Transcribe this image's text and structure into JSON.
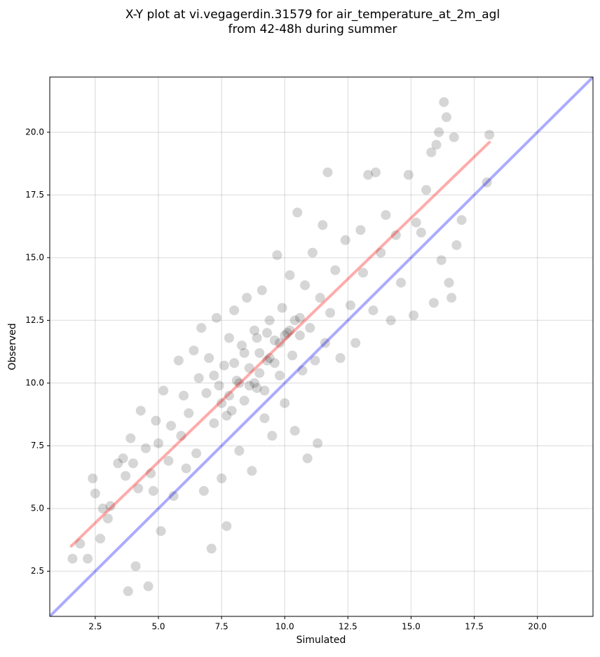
{
  "chart_data": {
    "type": "scatter",
    "title": [
      "X-Y plot at vi.vegagerdin.31579 for air_temperature_at_2m_agl",
      "from 42-48h during summer"
    ],
    "x_label": "Simulated",
    "y_label": "Observed",
    "xlim": [
      0.7,
      22.2
    ],
    "ylim": [
      0.7,
      22.2
    ],
    "xticks": [
      2.5,
      {
        "value": 5,
        "label": "5.0"
      },
      7.5,
      {
        "value": 10,
        "label": "10.0"
      },
      12.5,
      {
        "value": 15,
        "label": "15.0"
      },
      17.5,
      {
        "value": 20,
        "label": "20.0"
      }
    ],
    "yticks": [
      2.5,
      {
        "value": 5,
        "label": "5.0"
      },
      7.5,
      {
        "value": 10,
        "label": "10.0"
      },
      12.5,
      {
        "value": 15,
        "label": "15.0"
      },
      17.5,
      {
        "value": 20,
        "label": "20.0"
      }
    ],
    "grid": true,
    "color": "#000000",
    "x": [
      1.6,
      1.9,
      2.2,
      2.4,
      2.5,
      2.7,
      2.8,
      3.0,
      3.1,
      3.4,
      3.6,
      3.7,
      3.8,
      3.9,
      4.0,
      4.1,
      4.2,
      4.3,
      4.5,
      4.6,
      4.7,
      4.8,
      4.9,
      5.0,
      5.1,
      5.2,
      5.4,
      5.5,
      5.6,
      5.8,
      5.9,
      6.0,
      6.1,
      6.2,
      6.4,
      6.5,
      6.6,
      6.7,
      6.8,
      6.9,
      7.0,
      7.1,
      7.2,
      7.3,
      7.4,
      7.5,
      7.6,
      7.7,
      7.8,
      7.9,
      8.0,
      8.1,
      8.2,
      8.3,
      8.4,
      8.5,
      8.6,
      8.7,
      8.8,
      8.9,
      9.0,
      9.1,
      9.2,
      9.3,
      9.4,
      9.5,
      9.6,
      9.7,
      9.8,
      9.9,
      10.0,
      10.1,
      10.2,
      10.3,
      10.4,
      10.5,
      10.6,
      10.7,
      10.8,
      10.9,
      11.0,
      11.1,
      11.2,
      11.3,
      11.4,
      11.5,
      11.6,
      11.7,
      11.8,
      12.0,
      12.2,
      12.4,
      12.6,
      12.8,
      13.0,
      13.1,
      13.3,
      13.5,
      13.6,
      13.8,
      14.0,
      14.2,
      14.4,
      14.6,
      14.9,
      15.1,
      15.2,
      15.4,
      15.6,
      15.8,
      15.9,
      16.0,
      16.1,
      16.2,
      16.3,
      16.4,
      16.5,
      16.6,
      16.7,
      16.8,
      17.0,
      18.1,
      18.0,
      7.8,
      8.2,
      8.6,
      9.0,
      9.4,
      9.8,
      10.2,
      10.6,
      8.0,
      8.4,
      8.8,
      9.2,
      7.5,
      9.6,
      10.0,
      7.2,
      8.9,
      9.3,
      10.4,
      7.7
    ],
    "y": [
      3.0,
      3.6,
      3.0,
      6.2,
      5.6,
      3.8,
      5.0,
      4.6,
      5.1,
      6.8,
      7.0,
      6.3,
      1.7,
      7.8,
      6.8,
      2.7,
      5.8,
      8.9,
      7.4,
      1.9,
      6.4,
      5.7,
      8.5,
      7.6,
      4.1,
      9.7,
      6.9,
      8.3,
      5.5,
      10.9,
      7.9,
      9.5,
      6.6,
      8.8,
      11.3,
      7.2,
      10.2,
      12.2,
      5.7,
      9.6,
      11.0,
      3.4,
      8.4,
      12.6,
      9.9,
      6.2,
      10.7,
      4.3,
      11.8,
      8.9,
      12.9,
      10.1,
      7.3,
      11.5,
      9.3,
      13.4,
      10.6,
      6.5,
      12.1,
      9.8,
      11.2,
      13.7,
      8.6,
      10.9,
      12.5,
      7.9,
      11.7,
      15.1,
      10.3,
      13.0,
      9.2,
      12.0,
      14.3,
      11.1,
      8.1,
      16.8,
      12.6,
      10.5,
      13.9,
      7.0,
      12.2,
      15.2,
      10.9,
      7.6,
      13.4,
      16.3,
      11.6,
      18.4,
      12.8,
      14.5,
      11.0,
      15.7,
      13.1,
      11.6,
      16.1,
      14.4,
      18.3,
      12.9,
      18.4,
      15.2,
      16.7,
      12.5,
      15.9,
      14.0,
      18.3,
      12.7,
      16.4,
      16.0,
      17.7,
      19.2,
      13.2,
      19.5,
      20.0,
      14.9,
      21.2,
      20.6,
      14.0,
      13.4,
      19.8,
      15.5,
      16.5,
      19.9,
      18.0,
      9.5,
      10.0,
      9.9,
      10.4,
      11.0,
      11.6,
      12.1,
      11.9,
      10.8,
      11.2,
      10.0,
      9.7,
      9.2,
      10.8,
      11.9,
      10.3,
      11.8,
      12.0,
      12.5,
      8.7
    ],
    "lines": [
      {
        "color": "#0000ff",
        "x": [
          0.7,
          22.2
        ],
        "y": [
          0.7,
          22.2
        ]
      },
      {
        "color": "#ff0000",
        "x": [
          1.55,
          18.1
        ],
        "y": [
          3.5,
          19.6
        ]
      }
    ]
  }
}
